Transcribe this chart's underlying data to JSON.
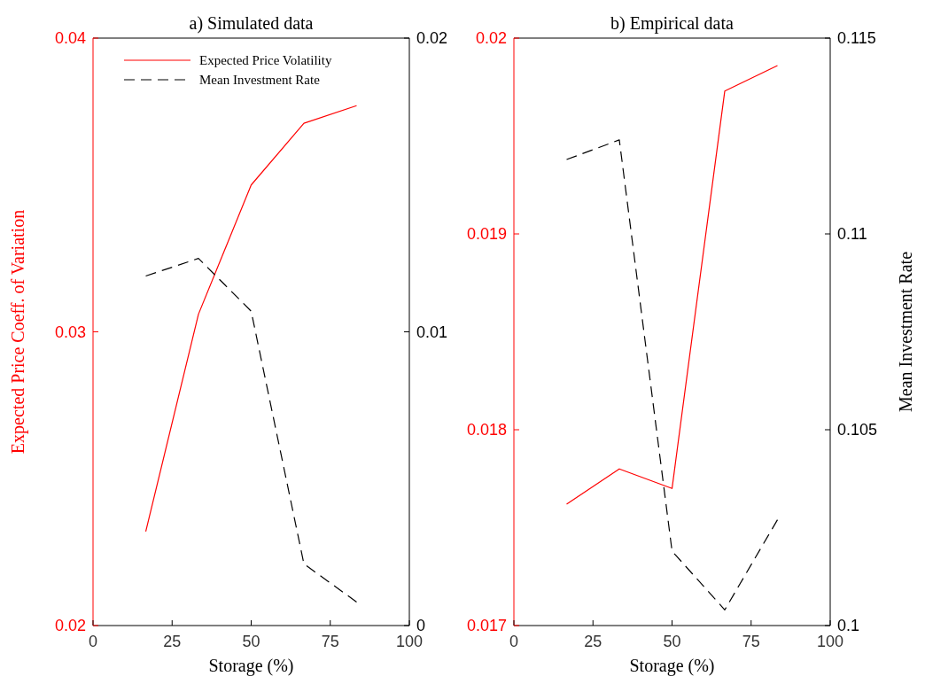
{
  "chart_data": [
    {
      "type": "line",
      "title": "a) Simulated data",
      "xlabel": "Storage (%)",
      "ylabel": "Expected Price Coeff. of Variation",
      "x": [
        16.67,
        33.33,
        50,
        66.67,
        83.33
      ],
      "series": [
        {
          "name": "Expected Price Volatility",
          "color": "#ff0000",
          "line_style": "solid",
          "values": [
            0.0232,
            0.0306,
            0.035,
            0.0371,
            0.0377
          ]
        },
        {
          "name": "Mean Investment Rate",
          "color": "#000000",
          "line_style": "dashed",
          "axis": "y2",
          "values": [
            0.0119,
            0.0125,
            0.0107,
            0.0021,
            0.0008
          ]
        }
      ],
      "xlim": [
        0,
        100
      ],
      "xticks": [
        0,
        25,
        50,
        75,
        100
      ],
      "ylim": [
        0.02,
        0.04
      ],
      "yticks": [
        0.02,
        0.03,
        0.04
      ],
      "y2lim": [
        0,
        0.02
      ],
      "y2ticks": [
        0,
        0.01,
        0.02
      ],
      "legend": "top",
      "grid": false
    },
    {
      "type": "line",
      "title": "b) Empirical data",
      "xlabel": "Storage (%)",
      "y2label": "Mean Investment Rate",
      "x": [
        16.67,
        33.33,
        50,
        66.67,
        83.33
      ],
      "series": [
        {
          "color": "#ff0000",
          "line_style": "solid",
          "values": [
            0.01762,
            0.0178,
            0.0177,
            0.01973,
            0.01986
          ]
        },
        {
          "color": "#000000",
          "line_style": "dashed",
          "axis": "y2",
          "values": [
            0.1119,
            0.1124,
            0.1019,
            0.1004,
            0.1027
          ]
        }
      ],
      "xlim": [
        0,
        100
      ],
      "xticks": [
        0,
        25,
        50,
        75,
        100
      ],
      "ylim": [
        0.017,
        0.02
      ],
      "yticks": [
        0.017,
        0.018,
        0.019,
        0.02
      ],
      "y2lim": [
        0.1,
        0.115
      ],
      "y2ticks": [
        0.1,
        0.105,
        0.11,
        0.115
      ],
      "legend": false,
      "grid": false
    }
  ]
}
